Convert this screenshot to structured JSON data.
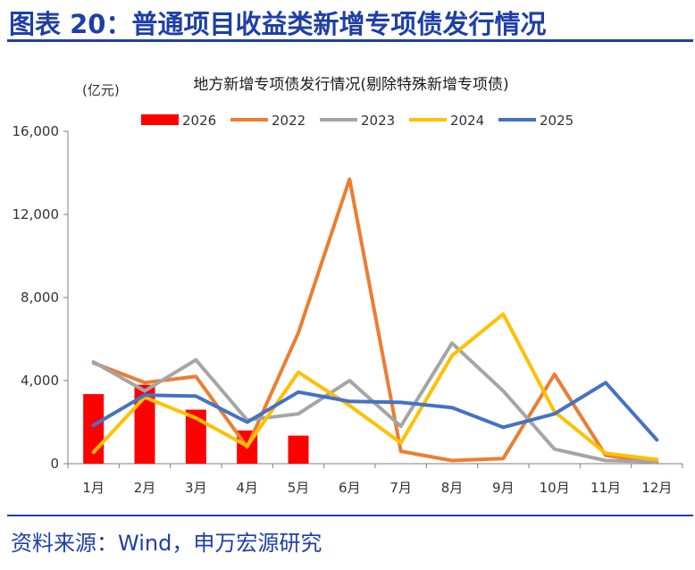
{
  "header": {
    "title": "图表 20：普通项目收益类新增专项债发行情况"
  },
  "footer": {
    "source": "资料来源：Wind，申万宏源研究"
  },
  "colors": {
    "brand": "#1f3fa6"
  },
  "chart_data": {
    "type": "bar+line",
    "title": "地方新增专项债发行情况(剔除特殊新增专项债)",
    "unit_label": "(亿元)",
    "categories": [
      "1月",
      "2月",
      "3月",
      "4月",
      "5月",
      "6月",
      "7月",
      "8月",
      "9月",
      "10月",
      "11月",
      "12月"
    ],
    "ylim": [
      0,
      16000
    ],
    "yticks": [
      0,
      4000,
      8000,
      12000,
      16000
    ],
    "ytick_labels": [
      "0",
      "4,000",
      "8,000",
      "12,000",
      "16,000"
    ],
    "grid": false,
    "legend": "top",
    "series": [
      {
        "name": "2026",
        "kind": "bar",
        "color": "#ff0000",
        "values": [
          3350,
          3800,
          2600,
          1600,
          1350,
          null,
          null,
          null,
          null,
          null,
          null,
          null
        ]
      },
      {
        "name": "2022",
        "kind": "line",
        "color": "#ed7d31",
        "values": [
          4850,
          3900,
          4200,
          800,
          6300,
          13700,
          600,
          150,
          250,
          4300,
          400,
          50
        ]
      },
      {
        "name": "2023",
        "kind": "line",
        "color": "#a5a5a5",
        "values": [
          4900,
          3500,
          5000,
          2100,
          2400,
          4000,
          1800,
          5800,
          3500,
          700,
          150,
          100
        ]
      },
      {
        "name": "2024",
        "kind": "line",
        "color": "#ffc000",
        "values": [
          550,
          3200,
          2200,
          850,
          4400,
          2800,
          1000,
          5200,
          7200,
          2500,
          500,
          200
        ]
      },
      {
        "name": "2025",
        "kind": "line",
        "color": "#4472c4",
        "values": [
          1850,
          3300,
          3250,
          2000,
          3450,
          3000,
          2950,
          2700,
          1750,
          2400,
          3900,
          1150
        ]
      }
    ]
  }
}
